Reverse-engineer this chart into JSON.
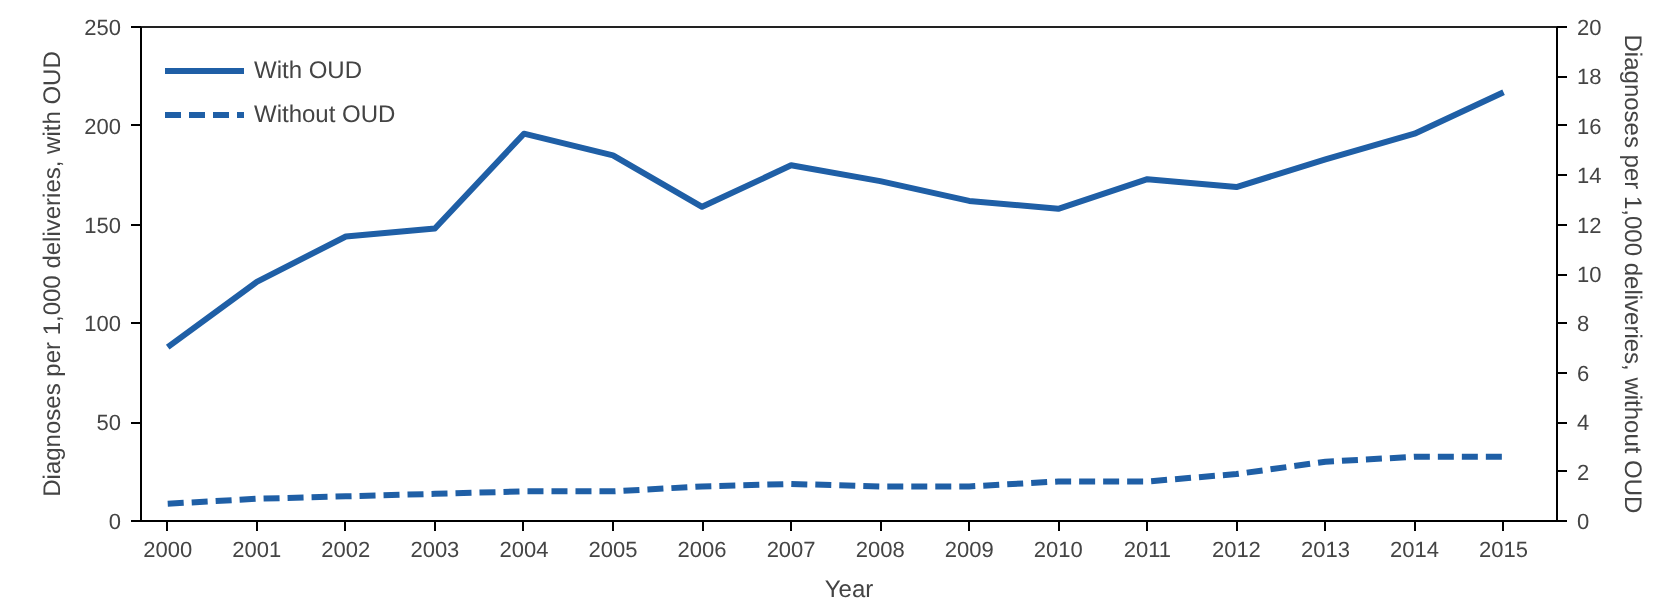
{
  "chart_data": {
    "type": "line",
    "xlabel": "Year",
    "ylabel": "Diagnoses per 1,000 deliveries, with OUD",
    "y2label": "Diagnoses per 1,000 deliveries, without OUD",
    "x": [
      2000,
      2001,
      2002,
      2003,
      2004,
      2005,
      2006,
      2007,
      2008,
      2009,
      2010,
      2011,
      2012,
      2013,
      2014,
      2015
    ],
    "xlim": [
      1999.7,
      2015.6
    ],
    "xticks": [
      2000,
      2001,
      2002,
      2003,
      2004,
      2005,
      2006,
      2007,
      2008,
      2009,
      2010,
      2011,
      2012,
      2013,
      2014,
      2015
    ],
    "ylim": [
      0,
      250
    ],
    "yticks": [
      0,
      50,
      100,
      150,
      200,
      250
    ],
    "y2lim": [
      0,
      20
    ],
    "y2ticks": [
      0,
      2,
      4,
      6,
      8,
      10,
      12,
      14,
      16,
      18,
      20
    ],
    "grid": false,
    "legend": "top left",
    "series": [
      {
        "name": "With OUD",
        "color": "#1f5fa6",
        "line_style": "solid",
        "values": [
          88,
          121,
          144,
          148,
          196,
          185,
          159,
          180,
          172,
          162,
          158,
          173,
          169,
          183,
          196,
          217
        ]
      },
      {
        "name": "Without OUD",
        "color": "#1f5fa6",
        "line_style": "dashed",
        "axis": "y2",
        "values": [
          0.7,
          0.9,
          1.0,
          1.1,
          1.2,
          1.2,
          1.4,
          1.5,
          1.4,
          1.4,
          1.6,
          1.6,
          1.9,
          2.4,
          2.6,
          2.6
        ]
      }
    ]
  }
}
